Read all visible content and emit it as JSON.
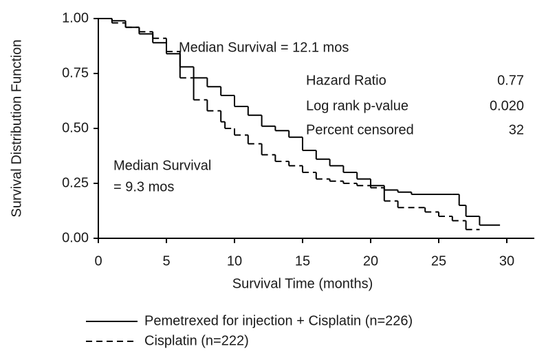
{
  "chart_data": {
    "type": "line",
    "step": true,
    "x_label": "Survival Time (months)",
    "y_label": "Survival Distribution Function",
    "xlim": [
      0,
      30
    ],
    "ylim": [
      0,
      1
    ],
    "xticks": [
      0,
      5,
      10,
      15,
      20,
      25,
      30
    ],
    "yticks": [
      {
        "value": 0,
        "label": "0.00"
      },
      {
        "value": 0.25,
        "label": "0.25"
      },
      {
        "value": 0.5,
        "label": "0.50"
      },
      {
        "value": 0.75,
        "label": "0.75"
      },
      {
        "value": 1,
        "label": "1.00"
      }
    ],
    "series": [
      {
        "name": "Pemetrexed for injection + Cisplatin (n=226)",
        "color": "#000000",
        "dash": false,
        "x": [
          0,
          1,
          2,
          3,
          4,
          5,
          6,
          7,
          8,
          9,
          10,
          11,
          12,
          13,
          14,
          15,
          16,
          17,
          18,
          19,
          20,
          21,
          22,
          23,
          26,
          26.5,
          27,
          28,
          29.5
        ],
        "values": [
          1.0,
          0.99,
          0.96,
          0.93,
          0.89,
          0.84,
          0.78,
          0.73,
          0.69,
          0.65,
          0.6,
          0.56,
          0.51,
          0.49,
          0.46,
          0.4,
          0.36,
          0.33,
          0.3,
          0.27,
          0.24,
          0.22,
          0.21,
          0.2,
          0.2,
          0.15,
          0.1,
          0.06,
          0.06
        ]
      },
      {
        "name": "Cisplatin (n=222)",
        "color": "#000000",
        "dash": true,
        "x": [
          0,
          1,
          2,
          3,
          4,
          5,
          6,
          7,
          8,
          9,
          9.3,
          10,
          11,
          12,
          13,
          14,
          15,
          16,
          17,
          18,
          19,
          20,
          21,
          22,
          24,
          25,
          26,
          27,
          28
        ],
        "values": [
          1.0,
          0.98,
          0.96,
          0.94,
          0.91,
          0.85,
          0.73,
          0.63,
          0.58,
          0.53,
          0.5,
          0.47,
          0.43,
          0.38,
          0.35,
          0.33,
          0.3,
          0.27,
          0.26,
          0.25,
          0.24,
          0.23,
          0.17,
          0.14,
          0.12,
          0.1,
          0.08,
          0.04,
          0.04
        ]
      }
    ],
    "annotations": [
      "Median Survival = 12.1 mos",
      "Median Survival",
      "= 9.3 mos"
    ],
    "stats": [
      [
        "Hazard Ratio",
        "0.77"
      ],
      [
        "Log rank p-value",
        "0.020"
      ],
      [
        "Percent censored",
        "32"
      ]
    ]
  }
}
